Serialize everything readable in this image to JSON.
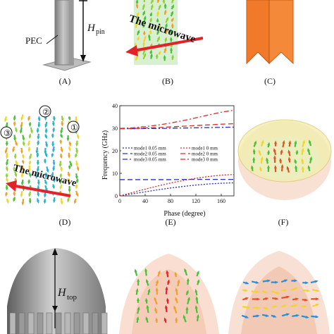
{
  "panel_a": {
    "caption": "(A)",
    "label_pec": "PEC",
    "label_h": "H",
    "label_h_sub": "pin"
  },
  "panel_b": {
    "caption": "(B)",
    "label_wave": "The microwave"
  },
  "panel_c": {
    "caption": "(C)"
  },
  "panel_d": {
    "caption": "(D)",
    "label_wave": "The microwave",
    "markers": [
      "①",
      "②",
      "③"
    ]
  },
  "panel_e": {
    "caption": "(E)"
  },
  "panel_f": {
    "caption": "(F)"
  },
  "panel_g": {
    "label_h": "H",
    "label_h_sub": "top"
  },
  "colors": {
    "pec_gray": "#9a9a9a",
    "pin_orange": "#f07a2a",
    "wave_red": "#e0242a",
    "field_green": "#5fbf3a",
    "field_yellow": "#f2d52a",
    "field_blue": "#2a6fd6"
  },
  "chart_data": {
    "type": "line",
    "title": "",
    "xlabel": "Phase (degree)",
    "ylabel": "Frequency (GHz)",
    "xlim": [
      0,
      180
    ],
    "ylim": [
      0,
      40
    ],
    "xticks": [
      0,
      40,
      80,
      120,
      160
    ],
    "yticks": [
      0,
      10,
      20,
      30,
      40
    ],
    "legend": "center-right",
    "series": [
      {
        "name": "mode1 0.05 mm",
        "color": "#2a2fb8",
        "dash": "2,2",
        "x": [
          0,
          20,
          40,
          60,
          80,
          100,
          120,
          140,
          160,
          180
        ],
        "y": [
          0,
          0.9,
          1.8,
          2.7,
          3.5,
          4.2,
          4.8,
          5.3,
          5.6,
          5.8
        ]
      },
      {
        "name": "mode2 0.05 mm",
        "color": "#2a2fb8",
        "dash": "7,4",
        "x": [
          0,
          20,
          40,
          60,
          80,
          100,
          120,
          140,
          160,
          180
        ],
        "y": [
          7.2,
          7.2,
          7.2,
          7.2,
          7.2,
          7.3,
          7.3,
          7.3,
          7.3,
          7.3
        ]
      },
      {
        "name": "mode3 0.05 mm",
        "color": "#2a2fb8",
        "dash": "7,3,2,3",
        "x": [
          0,
          20,
          40,
          60,
          80,
          100,
          120,
          140,
          160,
          180
        ],
        "y": [
          29.8,
          29.8,
          29.9,
          29.9,
          30.0,
          30.1,
          30.2,
          30.3,
          30.4,
          30.5
        ]
      },
      {
        "name": "mode1 0 mm",
        "color": "#d42a2a",
        "dash": "2,2",
        "x": [
          0,
          20,
          40,
          60,
          80,
          100,
          120,
          140,
          160,
          180
        ],
        "y": [
          0,
          1.5,
          3.0,
          4.4,
          5.7,
          6.8,
          7.8,
          8.6,
          9.2,
          9.5
        ]
      },
      {
        "name": "mode2 0 mm",
        "color": "#d42a2a",
        "dash": "7,4",
        "x": [
          0,
          20,
          40,
          60,
          80,
          100,
          120,
          140,
          160,
          180
        ],
        "y": [
          29.8,
          29.9,
          30.1,
          30.3,
          30.6,
          30.9,
          31.2,
          31.5,
          31.8,
          32.0
        ]
      },
      {
        "name": "mode3 0 mm",
        "color": "#d42a2a",
        "dash": "7,3,2,3",
        "x": [
          0,
          20,
          40,
          60,
          80,
          100,
          120,
          140,
          160,
          180
        ],
        "y": [
          29.9,
          30.2,
          30.7,
          31.4,
          32.3,
          33.4,
          34.6,
          35.9,
          37.1,
          38.0
        ]
      }
    ]
  }
}
